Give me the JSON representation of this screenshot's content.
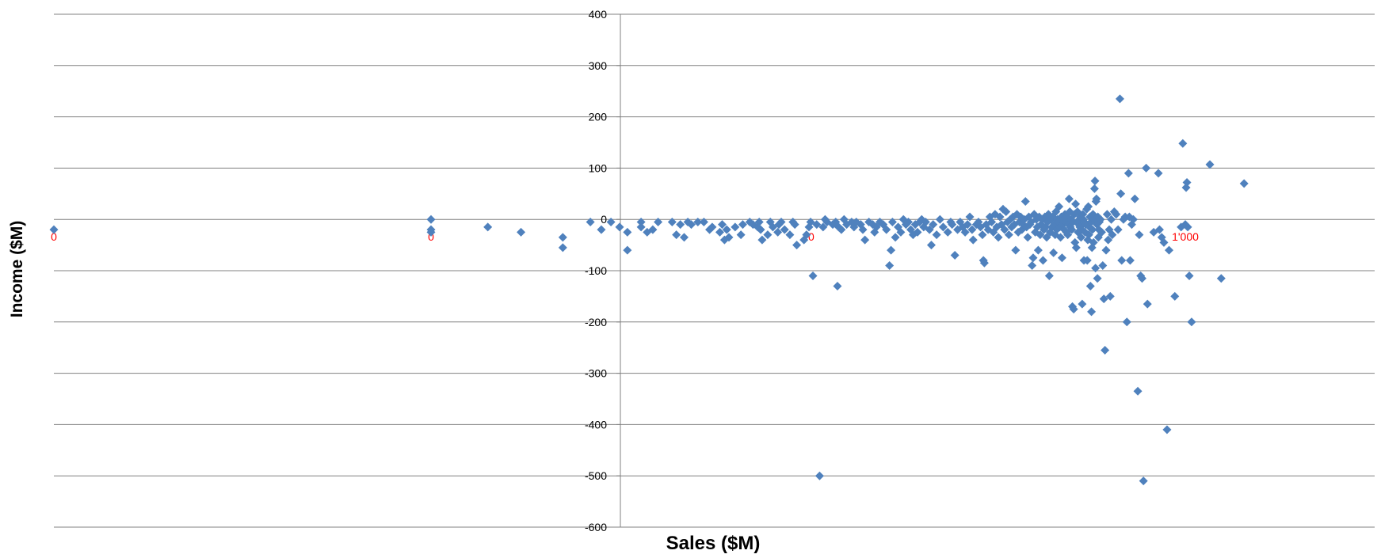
{
  "chart_data": {
    "type": "scatter",
    "xlabel": "Sales ($M)",
    "ylabel": "Income ($M)",
    "x_scale": "log10",
    "xlim": [
      0.001,
      30000
    ],
    "ylim": [
      -600,
      400
    ],
    "y_ticks": [
      400,
      300,
      200,
      100,
      0,
      -100,
      -200,
      -300,
      -400,
      -500,
      -600
    ],
    "y_tick_labels": [
      "400",
      "300",
      "200",
      "100",
      "0",
      "-100",
      "-200",
      "-300",
      "-400",
      "-500",
      "-600"
    ],
    "x_ticks": [
      0.001,
      0.1,
      10,
      1000
    ],
    "x_tick_labels": [
      "0",
      "0",
      "10",
      "1'000"
    ],
    "grid": "horizontal",
    "legend": "none",
    "colors": {
      "marker": "#4f81bd",
      "x_tick_label": "#ff0000",
      "axis": "#808080",
      "gridline": "#808080"
    },
    "points": [
      [
        0.001,
        -20
      ],
      [
        0.1,
        0
      ],
      [
        0.1,
        -20
      ],
      [
        0.1,
        -25
      ],
      [
        0.2,
        -15
      ],
      [
        0.3,
        -25
      ],
      [
        0.5,
        -35
      ],
      [
        0.5,
        -55
      ],
      [
        0.7,
        -5
      ],
      [
        0.8,
        -20
      ],
      [
        0.9,
        -5
      ],
      [
        1.0,
        -15
      ],
      [
        1.1,
        -25
      ],
      [
        1.1,
        -60
      ],
      [
        1.3,
        -5
      ],
      [
        1.3,
        -15
      ],
      [
        1.4,
        -25
      ],
      [
        1.5,
        -20
      ],
      [
        1.6,
        -5
      ],
      [
        1.9,
        -5
      ],
      [
        2.0,
        -30
      ],
      [
        2.1,
        -10
      ],
      [
        2.2,
        -35
      ],
      [
        2.3,
        -5
      ],
      [
        2.4,
        -10
      ],
      [
        2.6,
        -5
      ],
      [
        2.8,
        -5
      ],
      [
        3.0,
        -20
      ],
      [
        3.1,
        -15
      ],
      [
        3.4,
        -25
      ],
      [
        3.5,
        -10
      ],
      [
        3.6,
        -40
      ],
      [
        3.7,
        -20
      ],
      [
        3.8,
        -35
      ],
      [
        4.1,
        -15
      ],
      [
        4.4,
        -30
      ],
      [
        4.5,
        -10
      ],
      [
        4.9,
        -5
      ],
      [
        5.1,
        -10
      ],
      [
        5.4,
        -15
      ],
      [
        5.5,
        -5
      ],
      [
        5.6,
        -20
      ],
      [
        5.7,
        -40
      ],
      [
        6.1,
        -30
      ],
      [
        6.3,
        -5
      ],
      [
        6.5,
        -15
      ],
      [
        6.9,
        -25
      ],
      [
        7.0,
        -10
      ],
      [
        7.2,
        -5
      ],
      [
        7.5,
        -20
      ],
      [
        8.0,
        -30
      ],
      [
        8.3,
        -5
      ],
      [
        8.5,
        -10
      ],
      [
        8.7,
        -50
      ],
      [
        9.5,
        -40
      ],
      [
        9.8,
        -30
      ],
      [
        10.1,
        -15
      ],
      [
        10.3,
        -5
      ],
      [
        10.6,
        -110
      ],
      [
        11.1,
        -10
      ],
      [
        11.5,
        -500
      ],
      [
        12.0,
        -15
      ],
      [
        12.3,
        0
      ],
      [
        12.6,
        -5
      ],
      [
        13.5,
        -10
      ],
      [
        14.0,
        -5
      ],
      [
        14.3,
        -130
      ],
      [
        14.5,
        -15
      ],
      [
        15.0,
        -20
      ],
      [
        15.5,
        0
      ],
      [
        16.0,
        -10
      ],
      [
        17.0,
        -5
      ],
      [
        17.5,
        -15
      ],
      [
        18.0,
        -5
      ],
      [
        19.0,
        -10
      ],
      [
        19.5,
        -20
      ],
      [
        20.0,
        -40
      ],
      [
        21.0,
        -5
      ],
      [
        22.0,
        -10
      ],
      [
        22.5,
        -25
      ],
      [
        23.0,
        -15
      ],
      [
        24.0,
        -5
      ],
      [
        25.0,
        -10
      ],
      [
        26.0,
        -20
      ],
      [
        27.0,
        -90
      ],
      [
        27.5,
        -60
      ],
      [
        28.0,
        -5
      ],
      [
        29.0,
        -35
      ],
      [
        30.0,
        -15
      ],
      [
        31.0,
        -25
      ],
      [
        32.0,
        0
      ],
      [
        33.0,
        -10
      ],
      [
        34.0,
        -5
      ],
      [
        35.0,
        -20
      ],
      [
        36.0,
        -30
      ],
      [
        37.0,
        -10
      ],
      [
        38.0,
        -25
      ],
      [
        39.0,
        -5
      ],
      [
        40.0,
        0
      ],
      [
        41.0,
        -15
      ],
      [
        42.0,
        -5
      ],
      [
        44.0,
        -20
      ],
      [
        45.0,
        -50
      ],
      [
        46.0,
        -10
      ],
      [
        48.0,
        -30
      ],
      [
        50.0,
        0
      ],
      [
        52.0,
        -15
      ],
      [
        55.0,
        -25
      ],
      [
        57.0,
        -5
      ],
      [
        58.0,
        -10
      ],
      [
        60.0,
        -70
      ],
      [
        62.0,
        -20
      ],
      [
        64.0,
        -5
      ],
      [
        66.0,
        -15
      ],
      [
        68.0,
        -25
      ],
      [
        70.0,
        -10
      ],
      [
        72.0,
        5
      ],
      [
        74.0,
        -20
      ],
      [
        75.0,
        -40
      ],
      [
        78.0,
        -10
      ],
      [
        80.0,
        -5
      ],
      [
        82.0,
        -15
      ],
      [
        84.0,
        -30
      ],
      [
        85.0,
        -80
      ],
      [
        86.0,
        -85
      ],
      [
        88.0,
        -10
      ],
      [
        90.0,
        -20
      ],
      [
        92.0,
        5
      ],
      [
        94.0,
        -5
      ],
      [
        96.0,
        -25
      ],
      [
        98.0,
        10
      ],
      [
        100.0,
        -15
      ],
      [
        102.0,
        -35
      ],
      [
        104.0,
        5
      ],
      [
        106.0,
        -10
      ],
      [
        108.0,
        20
      ],
      [
        110.0,
        -20
      ],
      [
        112.0,
        15
      ],
      [
        114.0,
        -5
      ],
      [
        116.0,
        -30
      ],
      [
        118.0,
        0
      ],
      [
        120.0,
        -15
      ],
      [
        122.0,
        5
      ],
      [
        124.0,
        -10
      ],
      [
        126.0,
        -60
      ],
      [
        128.0,
        10
      ],
      [
        130.0,
        -25
      ],
      [
        132.0,
        -5
      ],
      [
        134.0,
        5
      ],
      [
        136.0,
        -20
      ],
      [
        138.0,
        -10
      ],
      [
        140.0,
        0
      ],
      [
        142.0,
        35
      ],
      [
        144.0,
        -15
      ],
      [
        146.0,
        -35
      ],
      [
        148.0,
        5
      ],
      [
        150.0,
        -10
      ],
      [
        152.0,
        -5
      ],
      [
        154.0,
        -90
      ],
      [
        156.0,
        -75
      ],
      [
        158.0,
        10
      ],
      [
        160.0,
        -25
      ],
      [
        162.0,
        0
      ],
      [
        164.0,
        -15
      ],
      [
        166.0,
        -60
      ],
      [
        168.0,
        5
      ],
      [
        170.0,
        -30
      ],
      [
        172.0,
        -10
      ],
      [
        174.0,
        0
      ],
      [
        176.0,
        -80
      ],
      [
        178.0,
        -20
      ],
      [
        180.0,
        5
      ],
      [
        182.0,
        -15
      ],
      [
        184.0,
        -35
      ],
      [
        186.0,
        -5
      ],
      [
        188.0,
        10
      ],
      [
        190.0,
        -110
      ],
      [
        192.0,
        -25
      ],
      [
        194.0,
        0
      ],
      [
        196.0,
        -15
      ],
      [
        198.0,
        5
      ],
      [
        200.0,
        -65
      ],
      [
        202.0,
        -10
      ],
      [
        204.0,
        -30
      ],
      [
        206.0,
        15
      ],
      [
        208.0,
        -20
      ],
      [
        210.0,
        0
      ],
      [
        212.0,
        -5
      ],
      [
        214.0,
        25
      ],
      [
        216.0,
        -15
      ],
      [
        218.0,
        -35
      ],
      [
        220.0,
        5
      ],
      [
        222.0,
        -75
      ],
      [
        224.0,
        -10
      ],
      [
        226.0,
        0
      ],
      [
        228.0,
        -20
      ],
      [
        230.0,
        10
      ],
      [
        232.0,
        -5
      ],
      [
        234.0,
        -25
      ],
      [
        236.0,
        5
      ],
      [
        238.0,
        -30
      ],
      [
        240.0,
        -10
      ],
      [
        242.0,
        40
      ],
      [
        244.0,
        15
      ],
      [
        246.0,
        -15
      ],
      [
        248.0,
        0
      ],
      [
        250.0,
        -20
      ],
      [
        252.0,
        -170
      ],
      [
        254.0,
        -5
      ],
      [
        256.0,
        -175
      ],
      [
        258.0,
        10
      ],
      [
        260.0,
        -45
      ],
      [
        262.0,
        30
      ],
      [
        264.0,
        -55
      ],
      [
        266.0,
        -5
      ],
      [
        268.0,
        15
      ],
      [
        270.0,
        -25
      ],
      [
        272.0,
        -10
      ],
      [
        274.0,
        0
      ],
      [
        276.0,
        -15
      ],
      [
        278.0,
        5
      ],
      [
        280.0,
        -35
      ],
      [
        282.0,
        -20
      ],
      [
        284.0,
        -165
      ],
      [
        286.0,
        10
      ],
      [
        288.0,
        0
      ],
      [
        290.0,
        -80
      ],
      [
        292.0,
        -5
      ],
      [
        294.0,
        -25
      ],
      [
        296.0,
        -10
      ],
      [
        300.0,
        20
      ],
      [
        302.0,
        -80
      ],
      [
        304.0,
        -40
      ],
      [
        306.0,
        25
      ],
      [
        308.0,
        -30
      ],
      [
        310.0,
        -15
      ],
      [
        312.0,
        5
      ],
      [
        314.0,
        -130
      ],
      [
        316.0,
        -5
      ],
      [
        318.0,
        -180
      ],
      [
        320.0,
        -55
      ],
      [
        322.0,
        -20
      ],
      [
        324.0,
        10
      ],
      [
        326.0,
        -45
      ],
      [
        328.0,
        0
      ],
      [
        330.0,
        60
      ],
      [
        332.0,
        75
      ],
      [
        334.0,
        -95
      ],
      [
        336.0,
        35
      ],
      [
        338.0,
        40
      ],
      [
        340.0,
        -10
      ],
      [
        342.0,
        -115
      ],
      [
        344.0,
        5
      ],
      [
        346.0,
        -35
      ],
      [
        348.0,
        -20
      ],
      [
        350.0,
        -5
      ],
      [
        355.0,
        0
      ],
      [
        360.0,
        -25
      ],
      [
        365.0,
        -90
      ],
      [
        370.0,
        -155
      ],
      [
        375.0,
        -255
      ],
      [
        380.0,
        -60
      ],
      [
        385.0,
        10
      ],
      [
        390.0,
        -40
      ],
      [
        395.0,
        -20
      ],
      [
        400.0,
        -150
      ],
      [
        405.0,
        0
      ],
      [
        410.0,
        -30
      ],
      [
        420.0,
        15
      ],
      [
        430.0,
        10
      ],
      [
        440.0,
        -20
      ],
      [
        450.0,
        235
      ],
      [
        455.0,
        50
      ],
      [
        460.0,
        -80
      ],
      [
        470.0,
        0
      ],
      [
        480.0,
        5
      ],
      [
        490.0,
        -200
      ],
      [
        500.0,
        90
      ],
      [
        505.0,
        5
      ],
      [
        510.0,
        -80
      ],
      [
        520.0,
        -10
      ],
      [
        530.0,
        0
      ],
      [
        540.0,
        40
      ],
      [
        560.0,
        -335
      ],
      [
        570.0,
        -30
      ],
      [
        580.0,
        -110
      ],
      [
        590.0,
        -115
      ],
      [
        600.0,
        -510
      ],
      [
        620.0,
        100
      ],
      [
        630.0,
        -165
      ],
      [
        680.0,
        -25
      ],
      [
        720.0,
        90
      ],
      [
        730.0,
        -20
      ],
      [
        750.0,
        -35
      ],
      [
        770.0,
        -45
      ],
      [
        800.0,
        -410
      ],
      [
        820.0,
        -60
      ],
      [
        880.0,
        -150
      ],
      [
        950.0,
        -15
      ],
      [
        970.0,
        148
      ],
      [
        1000.0,
        -10
      ],
      [
        1010.0,
        62
      ],
      [
        1020.0,
        72
      ],
      [
        1030.0,
        -15
      ],
      [
        1050.0,
        -110
      ],
      [
        1080.0,
        -200
      ],
      [
        1350.0,
        107
      ],
      [
        1550.0,
        -115
      ],
      [
        2050.0,
        70
      ]
    ]
  }
}
